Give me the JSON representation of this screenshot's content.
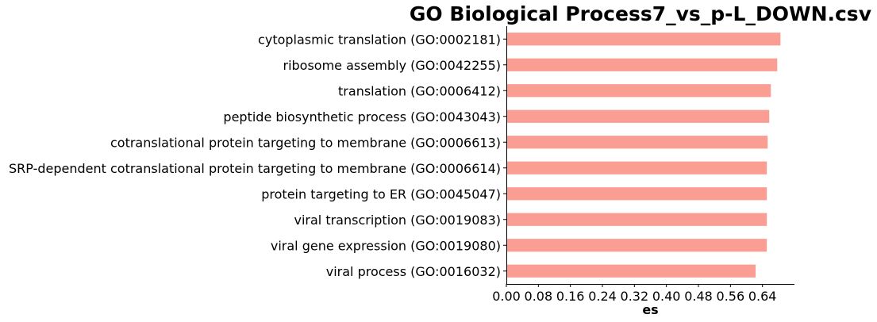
{
  "chart_data": {
    "type": "bar",
    "orientation": "horizontal",
    "title": "GO Biological Process7_vs_p-L_DOWN.csv",
    "xlabel": "es",
    "ylabel": "",
    "xlim": [
      0,
      0.72
    ],
    "xticks": [
      "0.00",
      "0.08",
      "0.16",
      "0.24",
      "0.32",
      "0.40",
      "0.48",
      "0.56",
      "0.64"
    ],
    "bar_color": "#fa9e93",
    "grid": false,
    "categories": [
      "cytoplasmic translation (GO:0002181)",
      "ribosome assembly (GO:0042255)",
      "translation (GO:0006412)",
      "peptide biosynthetic process (GO:0043043)",
      "cotranslational protein targeting to membrane (GO:0006613)",
      "SRP-dependent cotranslational protein targeting to membrane (GO:0006614)",
      "protein targeting to ER (GO:0045047)",
      "viral transcription (GO:0019083)",
      "viral gene expression (GO:0019080)",
      "viral process (GO:0016032)"
    ],
    "values": [
      0.685,
      0.677,
      0.661,
      0.657,
      0.653,
      0.651,
      0.651,
      0.651,
      0.651,
      0.623
    ]
  }
}
